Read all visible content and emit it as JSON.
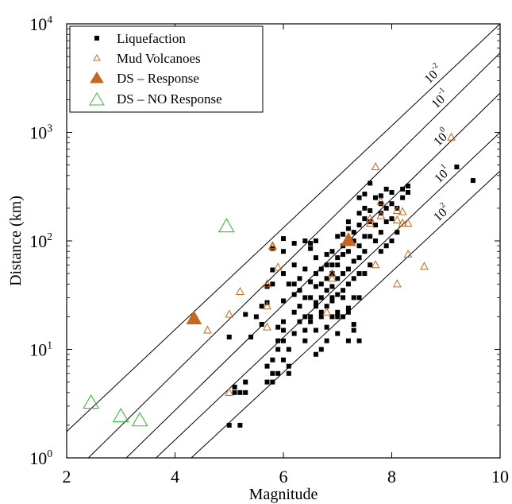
{
  "chart_data": {
    "type": "scatter",
    "xlabel": "Magnitude",
    "ylabel": "Distance (km)",
    "xlim": [
      2,
      10
    ],
    "ylim": [
      1,
      10000
    ],
    "yscale": "log",
    "x_ticks": [
      "2",
      "4",
      "6",
      "8",
      "10"
    ],
    "y_ticks": [
      {
        "base": "10",
        "exp": "0"
      },
      {
        "base": "10",
        "exp": "1"
      },
      {
        "base": "10",
        "exp": "2"
      },
      {
        "base": "10",
        "exp": "3"
      },
      {
        "base": "10",
        "exp": "4"
      }
    ],
    "grid": false,
    "legend_position": "top-left",
    "colors": {
      "liquefaction": "#000000",
      "mud": "#c8661e",
      "response": "#c8661e",
      "no_response": "#3dbb3d"
    },
    "contours": [
      {
        "base": "10",
        "exp": "-2",
        "points": [
          [
            2,
            1.75
          ],
          [
            10,
            10000
          ]
        ]
      },
      {
        "base": "10",
        "exp": "-1",
        "points": [
          [
            2.4,
            1
          ],
          [
            10,
            5400
          ]
        ]
      },
      {
        "base": "10",
        "exp": "0",
        "points": [
          [
            3.1,
            1
          ],
          [
            10,
            2300
          ]
        ]
      },
      {
        "base": "10",
        "exp": "1",
        "points": [
          [
            3.65,
            1
          ],
          [
            10,
            1000
          ]
        ]
      },
      {
        "base": "10",
        "exp": "2",
        "points": [
          [
            4.3,
            1
          ],
          [
            10,
            440
          ]
        ]
      }
    ],
    "series": [
      {
        "name": "Liquefaction",
        "marker": "square",
        "points": [
          [
            5.0,
            2
          ],
          [
            5.2,
            2
          ],
          [
            5.1,
            4
          ],
          [
            5.2,
            4
          ],
          [
            5.3,
            5
          ],
          [
            5.3,
            4
          ],
          [
            5.1,
            4.5
          ],
          [
            5.0,
            13
          ],
          [
            5.3,
            21
          ],
          [
            5.4,
            13
          ],
          [
            5.5,
            20
          ],
          [
            5.6,
            17
          ],
          [
            5.7,
            27
          ],
          [
            5.7,
            5
          ],
          [
            5.7,
            7
          ],
          [
            5.8,
            6
          ],
          [
            5.8,
            5
          ],
          [
            5.8,
            8
          ],
          [
            5.9,
            10
          ],
          [
            5.9,
            6
          ],
          [
            5.9,
            12
          ],
          [
            5.9,
            16
          ],
          [
            5.6,
            25
          ],
          [
            5.7,
            38
          ],
          [
            5.8,
            40
          ],
          [
            5.8,
            54
          ],
          [
            5.8,
            85
          ],
          [
            6.0,
            8
          ],
          [
            6.0,
            12
          ],
          [
            6.0,
            15
          ],
          [
            6.0,
            18
          ],
          [
            6.0,
            28
          ],
          [
            6.1,
            6
          ],
          [
            6.1,
            7
          ],
          [
            6.1,
            10
          ],
          [
            6.2,
            14
          ],
          [
            6.2,
            22
          ],
          [
            6.2,
            32
          ],
          [
            6.2,
            40
          ],
          [
            6.2,
            60
          ],
          [
            6.3,
            18
          ],
          [
            6.3,
            25
          ],
          [
            6.3,
            35
          ],
          [
            6.3,
            45
          ],
          [
            6.4,
            12
          ],
          [
            6.4,
            20
          ],
          [
            6.4,
            30
          ],
          [
            6.4,
            15
          ],
          [
            6.4,
            55
          ],
          [
            6.4,
            100
          ],
          [
            6.5,
            20
          ],
          [
            6.5,
            30
          ],
          [
            6.5,
            42
          ],
          [
            6.5,
            85
          ],
          [
            6.5,
            95
          ],
          [
            6.6,
            9
          ],
          [
            6.6,
            15
          ],
          [
            6.6,
            25
          ],
          [
            6.6,
            38
          ],
          [
            6.6,
            50
          ],
          [
            6.6,
            70
          ],
          [
            6.6,
            100
          ],
          [
            6.7,
            10
          ],
          [
            6.7,
            22
          ],
          [
            6.7,
            30
          ],
          [
            6.7,
            40
          ],
          [
            6.7,
            55
          ],
          [
            6.7,
            20
          ],
          [
            6.8,
            12
          ],
          [
            6.8,
            16
          ],
          [
            6.8,
            25
          ],
          [
            6.8,
            35
          ],
          [
            6.8,
            45
          ],
          [
            6.8,
            60
          ],
          [
            6.8,
            75
          ],
          [
            6.9,
            20
          ],
          [
            6.9,
            30
          ],
          [
            6.9,
            38
          ],
          [
            6.9,
            50
          ],
          [
            6.9,
            60
          ],
          [
            6.9,
            80
          ],
          [
            6.9,
            28
          ],
          [
            7.0,
            14
          ],
          [
            7.0,
            22
          ],
          [
            7.0,
            32
          ],
          [
            7.0,
            45
          ],
          [
            7.0,
            60
          ],
          [
            7.0,
            70
          ],
          [
            7.0,
            110
          ],
          [
            7.1,
            20
          ],
          [
            7.1,
            35
          ],
          [
            7.1,
            50
          ],
          [
            7.1,
            75
          ],
          [
            7.1,
            90
          ],
          [
            7.1,
            115
          ],
          [
            7.2,
            24
          ],
          [
            7.2,
            40
          ],
          [
            7.2,
            55
          ],
          [
            7.2,
            80
          ],
          [
            7.2,
            105
          ],
          [
            7.2,
            130
          ],
          [
            7.2,
            150
          ],
          [
            7.3,
            17
          ],
          [
            7.3,
            30
          ],
          [
            7.3,
            45
          ],
          [
            7.3,
            65
          ],
          [
            7.3,
            100
          ],
          [
            7.3,
            120
          ],
          [
            7.4,
            30
          ],
          [
            7.4,
            50
          ],
          [
            7.4,
            70
          ],
          [
            7.4,
            90
          ],
          [
            7.4,
            140
          ],
          [
            7.4,
            180
          ],
          [
            7.4,
            250
          ],
          [
            7.5,
            50
          ],
          [
            7.5,
            80
          ],
          [
            7.5,
            110
          ],
          [
            7.5,
            160
          ],
          [
            7.5,
            200
          ],
          [
            7.5,
            270
          ],
          [
            7.6,
            60
          ],
          [
            7.6,
            110
          ],
          [
            7.6,
            150
          ],
          [
            7.6,
            190
          ],
          [
            7.6,
            340
          ],
          [
            7.7,
            100
          ],
          [
            7.7,
            140
          ],
          [
            7.7,
            250
          ],
          [
            7.8,
            80
          ],
          [
            7.8,
            120
          ],
          [
            7.8,
            180
          ],
          [
            7.8,
            220
          ],
          [
            7.8,
            260
          ],
          [
            7.9,
            90
          ],
          [
            7.9,
            150
          ],
          [
            7.9,
            200
          ],
          [
            7.9,
            300
          ],
          [
            8.0,
            100
          ],
          [
            8.0,
            160
          ],
          [
            8.0,
            220
          ],
          [
            8.0,
            280
          ],
          [
            8.1,
            120
          ],
          [
            8.1,
            200
          ],
          [
            8.2,
            250
          ],
          [
            8.2,
            300
          ],
          [
            8.3,
            280
          ],
          [
            8.3,
            320
          ],
          [
            7.0,
            20
          ],
          [
            7.1,
            30
          ],
          [
            6.5,
            18
          ],
          [
            7.4,
            12
          ],
          [
            6.9,
            50
          ],
          [
            7.2,
            12
          ],
          [
            7.2,
            22
          ],
          [
            6.6,
            27
          ],
          [
            6.0,
            50
          ],
          [
            6.1,
            40
          ],
          [
            6.2,
            95
          ],
          [
            7.3,
            15
          ],
          [
            6.0,
            105
          ],
          [
            6.0,
            80
          ],
          [
            9.2,
            480
          ],
          [
            9.5,
            360
          ]
        ]
      },
      {
        "name": "Mud Volcanoes",
        "marker": "triangle-open",
        "points": [
          [
            4.6,
            15
          ],
          [
            5.0,
            4
          ],
          [
            5.0,
            21
          ],
          [
            5.2,
            34
          ],
          [
            5.7,
            25
          ],
          [
            5.7,
            40
          ],
          [
            5.7,
            16
          ],
          [
            5.8,
            90
          ],
          [
            5.8,
            88
          ],
          [
            5.9,
            57
          ],
          [
            6.8,
            22
          ],
          [
            6.9,
            45
          ],
          [
            6.9,
            50
          ],
          [
            7.6,
            145
          ],
          [
            7.6,
            160
          ],
          [
            7.7,
            480
          ],
          [
            7.7,
            60
          ],
          [
            7.8,
            170
          ],
          [
            7.8,
            230
          ],
          [
            8.1,
            190
          ],
          [
            8.1,
            155
          ],
          [
            8.1,
            40
          ],
          [
            8.2,
            145
          ],
          [
            8.2,
            185
          ],
          [
            8.3,
            145
          ],
          [
            8.3,
            75
          ],
          [
            8.6,
            58
          ],
          [
            9.1,
            900
          ]
        ]
      },
      {
        "name": "DS – Response",
        "marker": "triangle-filled",
        "points": [
          [
            4.35,
            19
          ],
          [
            7.2,
            100
          ]
        ]
      },
      {
        "name": "DS – NO Response",
        "marker": "triangle-open-large",
        "points": [
          [
            2.45,
            3.2
          ],
          [
            3.0,
            2.4
          ],
          [
            3.35,
            2.2
          ],
          [
            4.95,
            135
          ]
        ]
      }
    ]
  }
}
